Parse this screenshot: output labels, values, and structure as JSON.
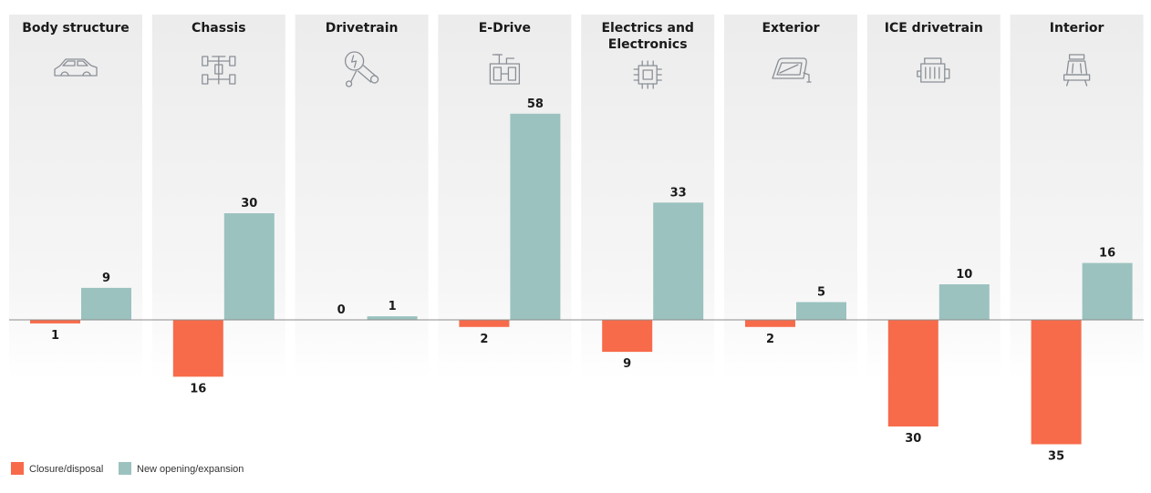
{
  "chart_data": {
    "type": "bar",
    "title": "",
    "xlabel": "",
    "ylabel": "",
    "categories": [
      {
        "label": [
          "Body structure"
        ],
        "icon": "car-body-icon"
      },
      {
        "label": [
          "Chassis"
        ],
        "icon": "chassis-icon"
      },
      {
        "label": [
          "Drivetrain"
        ],
        "icon": "drivetrain-icon"
      },
      {
        "label": [
          "E-Drive"
        ],
        "icon": "e-drive-icon"
      },
      {
        "label": [
          "Electrics and",
          "Electronics"
        ],
        "icon": "chip-icon"
      },
      {
        "label": [
          "Exterior"
        ],
        "icon": "side-mirror-icon"
      },
      {
        "label": [
          "ICE drivetrain"
        ],
        "icon": "engine-icon"
      },
      {
        "label": [
          "Interior"
        ],
        "icon": "seat-icon"
      }
    ],
    "series": [
      {
        "name": "Closure/disposal",
        "color": "#f76b4a",
        "values": [
          1,
          16,
          0,
          2,
          9,
          2,
          30,
          35
        ],
        "direction": "down"
      },
      {
        "name": "New opening/expansion",
        "color": "#9bc2bf",
        "values": [
          9,
          30,
          1,
          58,
          33,
          5,
          10,
          16
        ],
        "direction": "up"
      }
    ],
    "legend_position": "bottom-left",
    "grid": false,
    "panel_color": "#f1f1f1"
  }
}
